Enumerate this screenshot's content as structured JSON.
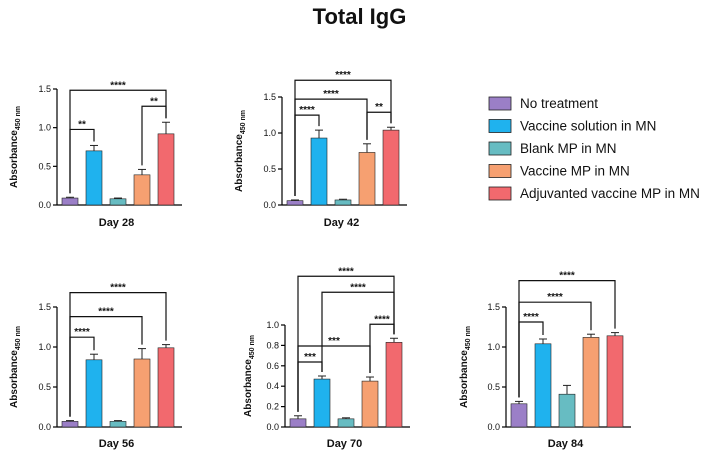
{
  "title": "Total IgG",
  "legend": [
    {
      "label": "No treatment",
      "color": "#9b7fc7"
    },
    {
      "label": "Vaccine solution in MN",
      "color": "#1fb2ee"
    },
    {
      "label": "Blank MP in MN",
      "color": "#67bcc2"
    },
    {
      "label": "Vaccine MP in MN",
      "color": "#f6a071"
    },
    {
      "label": "Adjuvanted vaccine MP in MN",
      "color": "#f2696e"
    }
  ],
  "chart_data": [
    {
      "type": "bar",
      "title": "",
      "xlabel": "Day 28",
      "ylabel": "Absorbance",
      "ylabel_sub": "450 nm",
      "ylim": [
        0,
        1.5
      ],
      "yticks": [
        "0.0",
        "0.5",
        "1.0",
        "1.5"
      ],
      "ytick_values": [
        0,
        0.5,
        1.0,
        1.5
      ],
      "categories": [
        "No treatment",
        "Vaccine solution in MN",
        "Blank MP in MN",
        "Vaccine MP in MN",
        "Adjuvanted vaccine MP in MN"
      ],
      "values": [
        0.09,
        0.7,
        0.08,
        0.39,
        0.92
      ],
      "errors": [
        0.01,
        0.07,
        0.01,
        0.07,
        0.15
      ],
      "significance": [
        {
          "from": 0,
          "to": 1,
          "label": "**"
        },
        {
          "from": 3,
          "to": 4,
          "label": "**"
        },
        {
          "from": 0,
          "to": 4,
          "label": "****"
        }
      ]
    },
    {
      "type": "bar",
      "title": "",
      "xlabel": "Day 42",
      "ylabel": "Absorbance",
      "ylabel_sub": "450 nm",
      "ylim": [
        0,
        1.5
      ],
      "yticks": [
        "0.0",
        "0.5",
        "1.0",
        "1.5"
      ],
      "ytick_values": [
        0,
        0.5,
        1.0,
        1.5
      ],
      "categories": [
        "No treatment",
        "Vaccine solution in MN",
        "Blank MP in MN",
        "Vaccine MP in MN",
        "Adjuvanted vaccine MP in MN"
      ],
      "values": [
        0.06,
        0.93,
        0.07,
        0.73,
        1.04
      ],
      "errors": [
        0.01,
        0.11,
        0.01,
        0.12,
        0.04
      ],
      "significance": [
        {
          "from": 0,
          "to": 1,
          "label": "****"
        },
        {
          "from": 3,
          "to": 4,
          "label": "**"
        },
        {
          "from": 0,
          "to": 3,
          "label": "****"
        },
        {
          "from": 0,
          "to": 4,
          "label": "****"
        }
      ]
    },
    {
      "type": "bar",
      "title": "",
      "xlabel": "Day 56",
      "ylabel": "Absorbance",
      "ylabel_sub": "450 nm",
      "ylim": [
        0,
        1.5
      ],
      "yticks": [
        "0.0",
        "0.5",
        "1.0",
        "1.5"
      ],
      "ytick_values": [
        0,
        0.5,
        1.0,
        1.5
      ],
      "categories": [
        "No treatment",
        "Vaccine solution in MN",
        "Blank MP in MN",
        "Vaccine MP in MN",
        "Adjuvanted vaccine MP in MN"
      ],
      "values": [
        0.07,
        0.84,
        0.07,
        0.85,
        0.99
      ],
      "errors": [
        0.01,
        0.07,
        0.01,
        0.13,
        0.04
      ],
      "significance": [
        {
          "from": 0,
          "to": 1,
          "label": "****"
        },
        {
          "from": 0,
          "to": 3,
          "label": "****"
        },
        {
          "from": 0,
          "to": 4,
          "label": "****"
        }
      ]
    },
    {
      "type": "bar",
      "title": "",
      "xlabel": "Day 70",
      "ylabel": "Absorbance",
      "ylabel_sub": "450 nm",
      "ylim": [
        0,
        1.0
      ],
      "yticks": [
        "0.0",
        "0.2",
        "0.4",
        "0.6",
        "0.8",
        "1.0"
      ],
      "ytick_values": [
        0,
        0.2,
        0.4,
        0.6,
        0.8,
        1.0
      ],
      "categories": [
        "No treatment",
        "Vaccine solution in MN",
        "Blank MP in MN",
        "Vaccine MP in MN",
        "Adjuvanted vaccine MP in MN"
      ],
      "values": [
        0.08,
        0.47,
        0.08,
        0.45,
        0.83
      ],
      "errors": [
        0.03,
        0.03,
        0.01,
        0.04,
        0.04
      ],
      "significance": [
        {
          "from": 0,
          "to": 1,
          "label": "***"
        },
        {
          "from": 3,
          "to": 4,
          "label": "****"
        },
        {
          "from": 0,
          "to": 3,
          "label": "***"
        },
        {
          "from": 1,
          "to": 4,
          "label": "****"
        },
        {
          "from": 0,
          "to": 4,
          "label": "****"
        }
      ]
    },
    {
      "type": "bar",
      "title": "",
      "xlabel": "Day 84",
      "ylabel": "Absorbance",
      "ylabel_sub": "450 nm",
      "ylim": [
        0,
        1.5
      ],
      "yticks": [
        "0.0",
        "0.5",
        "1.0",
        "1.5"
      ],
      "ytick_values": [
        0,
        0.5,
        1.0,
        1.5
      ],
      "categories": [
        "No treatment",
        "Vaccine solution in MN",
        "Blank MP in MN",
        "Vaccine MP in MN",
        "Adjuvanted vaccine MP in MN"
      ],
      "values": [
        0.29,
        1.04,
        0.41,
        1.12,
        1.14
      ],
      "errors": [
        0.03,
        0.06,
        0.11,
        0.04,
        0.04
      ],
      "significance": [
        {
          "from": 0,
          "to": 1,
          "label": "****"
        },
        {
          "from": 0,
          "to": 3,
          "label": "****"
        },
        {
          "from": 0,
          "to": 4,
          "label": "****"
        }
      ]
    }
  ]
}
